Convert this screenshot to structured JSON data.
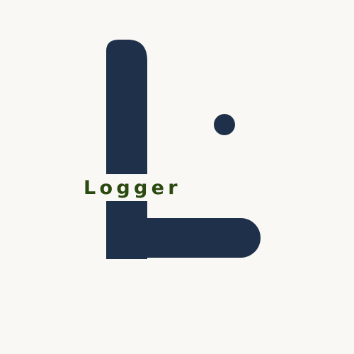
{
  "logo": {
    "brand_name": "Logger",
    "mark_letter": "L",
    "colors": {
      "background": "#faf8f5",
      "mark": "#1f314a",
      "wordmark": "#2a4a10"
    }
  }
}
